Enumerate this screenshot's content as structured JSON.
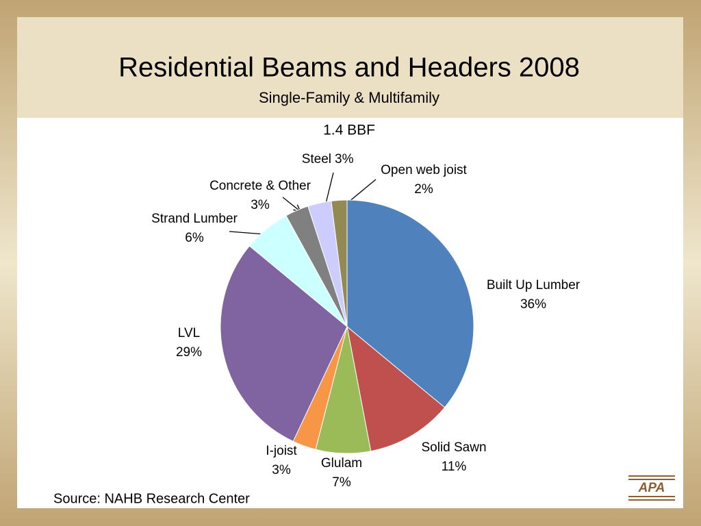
{
  "chart_data": {
    "type": "pie",
    "title": "Residential Beams and Headers 2008",
    "subtitle": "Single-Family & Multifamily",
    "annotation": "1.4 BBF",
    "source": "Source:  NAHB Research Center",
    "categories": [
      "Built Up Lumber",
      "Solid Sawn",
      "Glulam",
      "I-joist",
      "LVL",
      "Strand Lumber",
      "Concrete & Other",
      "Steel",
      "Open web joist"
    ],
    "values": [
      36,
      11,
      7,
      3,
      29,
      6,
      3,
      3,
      2
    ],
    "value_labels": [
      "36%",
      "11%",
      "7%",
      "3%",
      "29%",
      "6%",
      "3%",
      "3%",
      "2%"
    ],
    "colors": [
      "#4f81bd",
      "#c0504d",
      "#9bbb59",
      "#f79646",
      "#8064a2",
      "#ccffff",
      "#808080",
      "#ccccff",
      "#938953"
    ]
  },
  "logo": "APA"
}
